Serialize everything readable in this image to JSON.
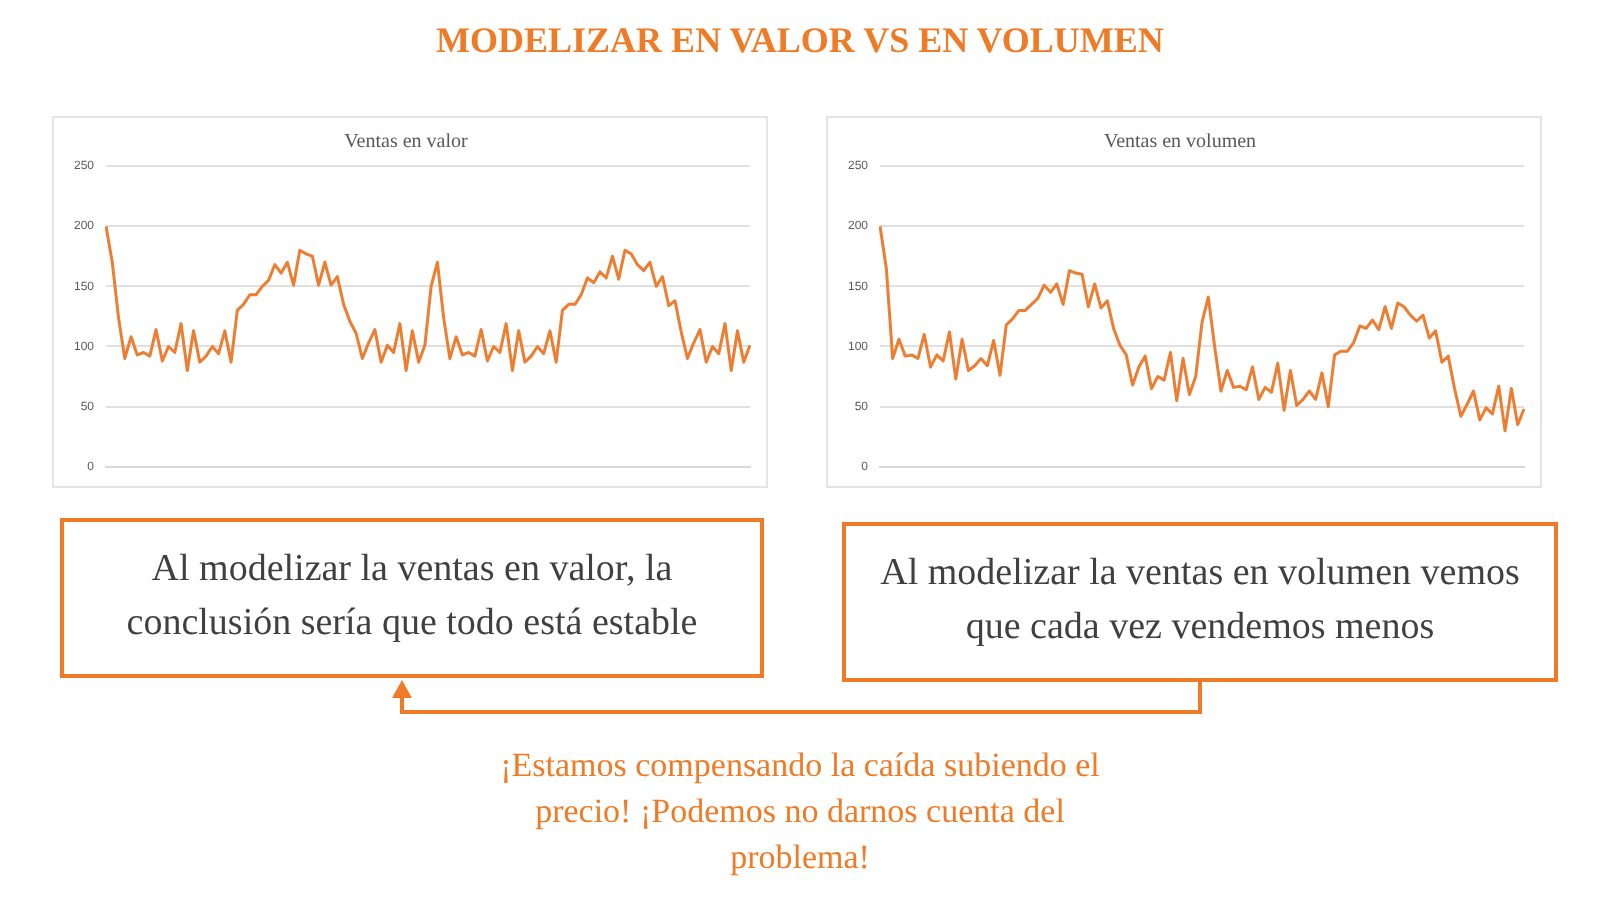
{
  "chart_data": [
    {
      "type": "line",
      "title": "Ventas en valor",
      "color": "#ed7d31",
      "grid": "y",
      "tick_labels": "y",
      "marker": "none",
      "ylim": [
        0,
        250
      ],
      "yticks": [
        0,
        50,
        100,
        150,
        200,
        250
      ],
      "categories": [
        null,
        null,
        null,
        null,
        null,
        null,
        null,
        null,
        null,
        null,
        null,
        null,
        null,
        null,
        null,
        null,
        null,
        null,
        null,
        null,
        null,
        null,
        null,
        null,
        null,
        null,
        null,
        null,
        null,
        null,
        null,
        null,
        null,
        null,
        null,
        null,
        null,
        null,
        null,
        null,
        null,
        null,
        null,
        null,
        null,
        null,
        null,
        null,
        null,
        null,
        null,
        null,
        null,
        null,
        null,
        null,
        null,
        null,
        null,
        null,
        null,
        null,
        null,
        null,
        null,
        null,
        null,
        null,
        null,
        null,
        null,
        null,
        null,
        null,
        null,
        null,
        null,
        null,
        null,
        null,
        null,
        null,
        null,
        null,
        null,
        null,
        null,
        null,
        null,
        null,
        null,
        null,
        null,
        null,
        null,
        null,
        null,
        null,
        null,
        null,
        null,
        null,
        null,
        null
      ],
      "values": [
        200,
        170,
        124,
        90,
        108,
        93,
        95,
        92,
        114,
        88,
        100,
        95,
        119,
        80,
        113,
        87,
        92,
        100,
        94,
        113,
        87,
        130,
        135,
        143,
        143,
        150,
        155,
        168,
        161,
        170,
        151,
        180,
        177,
        175,
        151,
        170,
        151,
        158,
        135,
        121,
        111,
        90,
        103,
        114,
        87,
        101,
        95,
        119,
        80,
        113,
        87,
        101,
        150,
        170,
        124,
        90,
        108,
        93,
        95,
        92,
        114,
        88,
        100,
        95,
        119,
        80,
        113,
        87,
        92,
        100,
        94,
        113,
        87,
        130,
        135,
        135,
        143,
        157,
        153,
        162,
        157,
        175,
        156,
        180,
        177,
        168,
        163,
        170,
        150,
        158,
        134,
        138,
        112,
        90,
        103,
        114,
        87,
        100,
        94,
        119,
        80,
        113,
        87,
        101
      ],
      "annotations": [
        "MODELIZAR EN VALOR VS EN VOLUMEN",
        "Al modelizar la ventas en valor, la conclusión sería que todo está estable"
      ]
    },
    {
      "type": "line",
      "title": "Ventas en volumen",
      "color": "#ed7d31",
      "grid": "y",
      "tick_labels": "y",
      "marker": "none",
      "ylim": [
        0,
        250
      ],
      "yticks": [
        0,
        50,
        100,
        150,
        200,
        250
      ],
      "categories": [
        null,
        null,
        null,
        null,
        null,
        null,
        null,
        null,
        null,
        null,
        null,
        null,
        null,
        null,
        null,
        null,
        null,
        null,
        null,
        null,
        null,
        null,
        null,
        null,
        null,
        null,
        null,
        null,
        null,
        null,
        null,
        null,
        null,
        null,
        null,
        null,
        null,
        null,
        null,
        null,
        null,
        null,
        null,
        null,
        null,
        null,
        null,
        null,
        null,
        null,
        null,
        null,
        null,
        null,
        null,
        null,
        null,
        null,
        null,
        null,
        null,
        null,
        null,
        null,
        null,
        null,
        null,
        null,
        null,
        null,
        null,
        null,
        null,
        null,
        null,
        null,
        null,
        null,
        null,
        null,
        null,
        null,
        null,
        null,
        null,
        null,
        null,
        null,
        null,
        null,
        null,
        null,
        null,
        null,
        null,
        null,
        null,
        null,
        null,
        null,
        null,
        null,
        null
      ],
      "values": [
        200,
        165,
        90,
        106,
        92,
        93,
        90,
        110,
        83,
        93,
        88,
        112,
        73,
        106,
        80,
        84,
        90,
        84,
        105,
        76,
        118,
        123,
        130,
        130,
        135,
        140,
        151,
        145,
        152,
        135,
        163,
        161,
        160,
        133,
        152,
        132,
        138,
        115,
        101,
        93,
        68,
        83,
        92,
        65,
        75,
        72,
        95,
        55,
        90,
        60,
        75,
        120,
        141,
        100,
        63,
        80,
        66,
        67,
        64,
        83,
        56,
        66,
        62,
        86,
        47,
        80,
        51,
        56,
        63,
        56,
        78,
        50,
        93,
        96,
        96,
        103,
        117,
        115,
        122,
        114,
        133,
        115,
        136,
        133,
        126,
        121,
        126,
        107,
        113,
        87,
        92,
        65,
        42,
        52,
        63,
        39,
        49,
        44,
        67,
        30,
        65,
        35,
        48
      ],
      "annotations": [
        "Al modelizar la ventas en volumen vemos que cada vez vendemos menos",
        "¡Estamos compensando la caída subiendo el precio! ¡Podemos no darnos cuenta del problema!"
      ]
    }
  ]
}
